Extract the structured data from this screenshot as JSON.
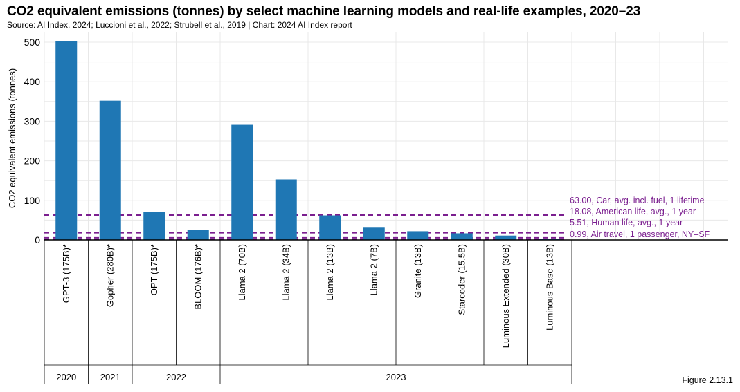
{
  "title": "CO2 equivalent emissions (tonnes) by select machine learning models and real-life examples, 2020–23",
  "source": "Source: AI Index, 2024; Luccioni et al., 2022; Strubell et al., 2019 | Chart: 2024 AI Index report",
  "figure_label": "Figure 2.13.1",
  "colors": {
    "bar": "#1f77b4",
    "reference": "#7b1f8f",
    "axis": "#000000",
    "grid": "#e8e8e8"
  },
  "chart_data": {
    "type": "bar",
    "ylabel": "CO2 equivalent emissions (tonnes)",
    "ylim": [
      0,
      530
    ],
    "yticks": [
      0,
      100,
      200,
      300,
      400,
      500
    ],
    "grid": true,
    "categories": [
      "GPT-3 (175B)*",
      "Gopher (280B)*",
      "OPT (175B)*",
      "BLOOM (176B)*",
      "Llama 2 (70B)",
      "Llama 2 (34B)",
      "Llama 2 (13B)",
      "Llama 2 (7B)",
      "Granite (13B)",
      "Starcoder (15.5B)",
      "Luminous Extended (30B)",
      "Luminous Base (13B)"
    ],
    "values": [
      502,
      352,
      70,
      25,
      291,
      153,
      62,
      31,
      22,
      16.68,
      11,
      3
    ],
    "year_groups": [
      {
        "label": "2020",
        "count": 1
      },
      {
        "label": "2021",
        "count": 1
      },
      {
        "label": "2022",
        "count": 2
      },
      {
        "label": "2023",
        "count": 8
      }
    ],
    "reference_lines": [
      {
        "value": 63.0,
        "label": "63.00, Car, avg. incl. fuel, 1 lifetime"
      },
      {
        "value": 18.08,
        "label": "18.08, American life, avg., 1 year"
      },
      {
        "value": 5.51,
        "label": "5.51, Human life, avg., 1 year"
      },
      {
        "value": 0.99,
        "label": "0.99, Air travel, 1 passenger, NY–SF"
      }
    ]
  }
}
